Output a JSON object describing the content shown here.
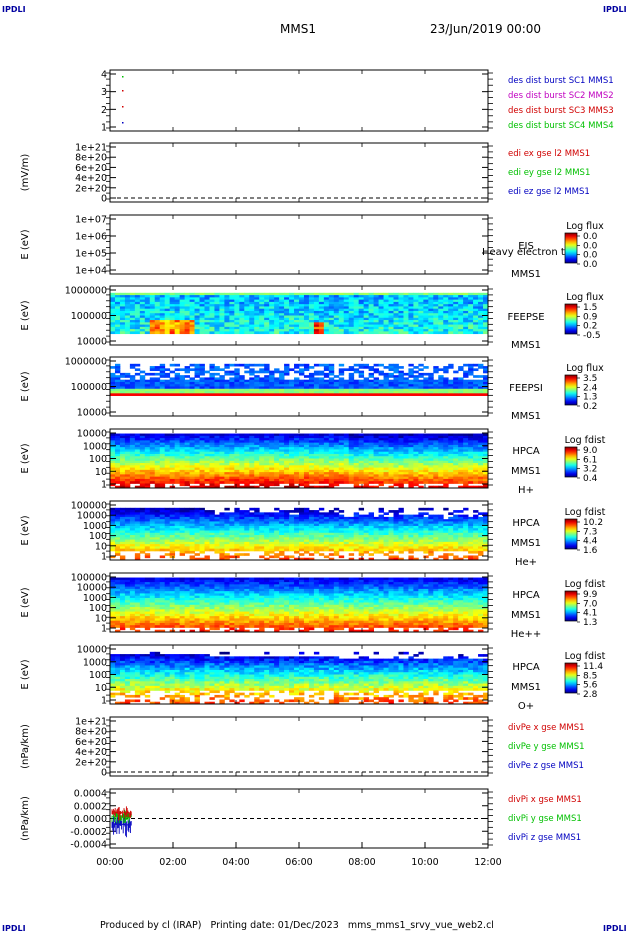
{
  "corners": {
    "tl": "IPDLI",
    "tr": "IPDLI",
    "bl": "IPDLI",
    "br": "IPDLI"
  },
  "header": {
    "title": "MMS1",
    "date": "23/Jun/2019 00:00"
  },
  "footer": "Produced by cl (IRAP)   Printing date: 01/Dec/2023   mms_mms1_srvy_vue_web2.cl",
  "chart_data": {
    "type": "stacked-timeseries",
    "x_ticks": [
      "00:00",
      "02:00",
      "04:00",
      "06:00",
      "08:00",
      "10:00",
      "12:00"
    ],
    "panels": [
      {
        "id": "p1",
        "kind": "line",
        "ylabel": "",
        "yticks": [
          "4",
          "3",
          "2",
          "1"
        ],
        "series": [
          {
            "name": "des dist burst SC1 MMS1",
            "color": "#0000c0"
          },
          {
            "name": "des dist burst SC2 MMS2",
            "color": "#c000c0"
          },
          {
            "name": "des dist burst SC3 MMS3",
            "color": "#d00000"
          },
          {
            "name": "des dist burst SC4 MMS4",
            "color": "#00c000"
          }
        ]
      },
      {
        "id": "p2",
        "kind": "line",
        "ylabel": "(mV/m)",
        "yticks": [
          "1e+21",
          "8e+20",
          "6e+20",
          "4e+20",
          "2e+20",
          "0"
        ],
        "series": [
          {
            "name": "edi ex gse l2 MMS1",
            "color": "#d00000"
          },
          {
            "name": "edi ey gse l2 MMS1",
            "color": "#00c000"
          },
          {
            "name": "edi ez gse l2 MMS1",
            "color": "#0000c0"
          }
        ]
      },
      {
        "id": "p3",
        "kind": "spec",
        "ylabel": "E (eV)",
        "yticks": [
          "1e+07",
          "1e+06",
          "1e+05",
          "1e+04"
        ],
        "labels": [
          "EIS",
          "MMS1"
        ],
        "overlay": "Heavy electron te",
        "cbar_title": "Log flux",
        "cbar_ticks": [
          "0.0",
          "0.0",
          "0.0",
          "0.0"
        ]
      },
      {
        "id": "p4",
        "kind": "spec",
        "ylabel": "E (eV)",
        "yticks": [
          "1000000",
          "100000",
          "10000"
        ],
        "labels": [
          "FEEPSE",
          "MMS1"
        ],
        "cbar_title": "Log flux",
        "cbar_ticks": [
          "1.5",
          "0.9",
          "0.2",
          "-0.5"
        ]
      },
      {
        "id": "p5",
        "kind": "spec",
        "ylabel": "E (eV)",
        "yticks": [
          "1000000",
          "100000",
          "10000"
        ],
        "labels": [
          "FEEPSI",
          "MMS1"
        ],
        "cbar_title": "Log flux",
        "cbar_ticks": [
          "3.5",
          "2.4",
          "1.3",
          "0.2"
        ]
      },
      {
        "id": "p6",
        "kind": "spec",
        "ylabel": "E (eV)",
        "yticks": [
          "10000",
          "1000",
          "100",
          "10",
          "1"
        ],
        "labels": [
          "HPCA",
          "MMS1",
          "H+"
        ],
        "cbar_title": "Log fdist",
        "cbar_ticks": [
          "9.0",
          "6.1",
          "3.2",
          "0.4"
        ]
      },
      {
        "id": "p7",
        "kind": "spec",
        "ylabel": "E (eV)",
        "yticks": [
          "100000",
          "10000",
          "1000",
          "100",
          "10",
          "1"
        ],
        "labels": [
          "HPCA",
          "MMS1",
          "He+"
        ],
        "cbar_title": "Log fdist",
        "cbar_ticks": [
          "10.2",
          "7.3",
          "4.4",
          "1.6"
        ]
      },
      {
        "id": "p8",
        "kind": "spec",
        "ylabel": "E (eV)",
        "yticks": [
          "100000",
          "10000",
          "1000",
          "100",
          "10",
          "1"
        ],
        "labels": [
          "HPCA",
          "MMS1",
          "He++"
        ],
        "cbar_title": "Log fdist",
        "cbar_ticks": [
          "9.9",
          "7.0",
          "4.1",
          "1.3"
        ]
      },
      {
        "id": "p9",
        "kind": "spec",
        "ylabel": "E (eV)",
        "yticks": [
          "10000",
          "1000",
          "100",
          "10",
          "1"
        ],
        "labels": [
          "HPCA",
          "MMS1",
          "O+"
        ],
        "cbar_title": "Log fdist",
        "cbar_ticks": [
          "11.4",
          "8.5",
          "5.6",
          "2.8"
        ]
      },
      {
        "id": "p10",
        "kind": "line",
        "ylabel": "(nPa/km)",
        "yticks": [
          "1e+21",
          "8e+20",
          "6e+20",
          "4e+20",
          "2e+20",
          "0"
        ],
        "series": [
          {
            "name": "divPe x gse MMS1",
            "color": "#d00000"
          },
          {
            "name": "divPe y gse MMS1",
            "color": "#00c000"
          },
          {
            "name": "divPe z gse MMS1",
            "color": "#0000c0"
          }
        ]
      },
      {
        "id": "p11",
        "kind": "line",
        "ylabel": "(nPa/km)",
        "yticks": [
          "0.0004",
          "0.0002",
          "0.0000",
          "-0.0002",
          "-0.0004"
        ],
        "series": [
          {
            "name": "divPi x gse MMS1",
            "color": "#d00000"
          },
          {
            "name": "divPi y gse MMS1",
            "color": "#00c000"
          },
          {
            "name": "divPi z gse MMS1",
            "color": "#0000c0"
          }
        ]
      }
    ]
  }
}
